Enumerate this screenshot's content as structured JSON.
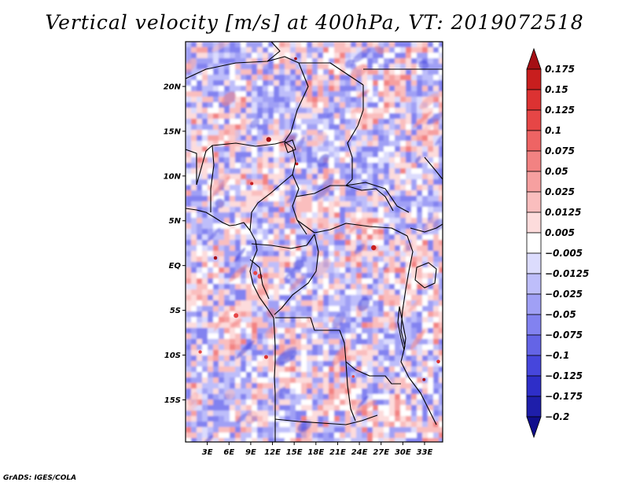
{
  "chart_data": {
    "type": "heatmap",
    "title": "Vertical velocity [m/s] at 400hPa, VT: 2019072518",
    "variable": "Vertical velocity",
    "units": "m/s",
    "level": "400hPa",
    "valid_time": "2019072518",
    "x_axis": {
      "range": [
        0,
        35.5
      ],
      "ticks": [
        3,
        6,
        9,
        12,
        15,
        18,
        21,
        24,
        27,
        30,
        33
      ],
      "tick_labels": [
        "3E",
        "6E",
        "9E",
        "12E",
        "15E",
        "18E",
        "21E",
        "24E",
        "27E",
        "30E",
        "33E"
      ]
    },
    "y_axis": {
      "range": [
        -19.7,
        25
      ],
      "ticks": [
        20,
        15,
        10,
        5,
        0,
        -5,
        -10,
        -15
      ],
      "tick_labels": [
        "20N",
        "15N",
        "10N",
        "5N",
        "EQ",
        "5S",
        "10S",
        "15S"
      ]
    },
    "colorbar": {
      "levels": [
        0.175,
        0.15,
        0.125,
        0.1,
        0.075,
        0.05,
        0.025,
        0.0125,
        0.005,
        -0.005,
        -0.0125,
        -0.025,
        -0.05,
        -0.075,
        -0.1,
        -0.125,
        -0.175,
        -0.2
      ],
      "labels": [
        "0.175",
        "0.15",
        "0.125",
        "0.1",
        "0.075",
        "0.05",
        "0.025",
        "0.0125",
        "0.005",
        "−0.005",
        "−0.0125",
        "−0.025",
        "−0.05",
        "−0.075",
        "−0.1",
        "−0.125",
        "−0.175",
        "−0.2"
      ],
      "colors": [
        "#a50f15",
        "#c81e1e",
        "#dc3232",
        "#e64646",
        "#ee6464",
        "#f28282",
        "#f6a0a0",
        "#fabebe",
        "#fddcdc",
        "#ffffff",
        "#dcdcfd",
        "#bebefa",
        "#a0a0f5",
        "#8282f0",
        "#6464e6",
        "#4646dc",
        "#2e2ec8",
        "#1e1eaa",
        "#100e8c"
      ]
    },
    "credit": "GrADS: IGES/COLA"
  }
}
